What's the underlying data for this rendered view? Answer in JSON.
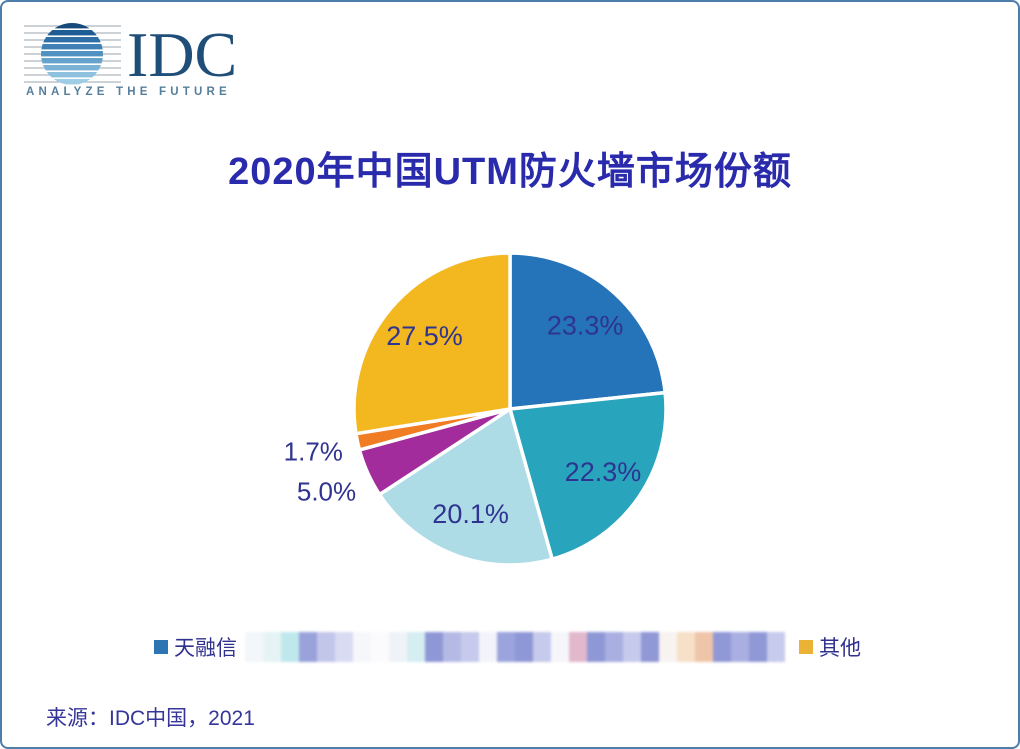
{
  "page": {
    "background": "#ffffff",
    "border_color": "#4C7EA9"
  },
  "logo": {
    "text": "IDC",
    "tagline": "ANALYZE THE FUTURE",
    "text_color": "#1F4E79",
    "tagline_color": "#557F9B",
    "globe_band_colors": [
      "#17497A",
      "#1D5C94",
      "#2D6FA6",
      "#3F81B4",
      "#5292C0",
      "#66A3CC",
      "#7AB3D6",
      "#8DC1DE",
      "#9FCDE5"
    ]
  },
  "title": "2020年中国UTM防火墙市场份额",
  "chart_data": {
    "type": "pie",
    "title": "2020年中国UTM防火墙市场份额",
    "start_angle_deg": 0,
    "direction": "clockwise",
    "label_color": "#2F3490",
    "legend_position": "bottom",
    "slices": [
      {
        "label": "天融信",
        "value": 23.3,
        "display": "23.3%",
        "color": "#2574B9",
        "redacted": false
      },
      {
        "label": "",
        "value": 22.3,
        "display": "22.3%",
        "color": "#28A5BC",
        "redacted": true
      },
      {
        "label": "",
        "value": 20.1,
        "display": "20.1%",
        "color": "#ADDCE7",
        "redacted": true
      },
      {
        "label": "",
        "value": 5.0,
        "display": "5.0%",
        "color": "#A32C9C",
        "redacted": true
      },
      {
        "label": "",
        "value": 1.7,
        "display": "1.7%",
        "color": "#F07D23",
        "redacted": true
      },
      {
        "label": "其他",
        "value": 27.5,
        "display": "27.5%",
        "color": "#F3B71F",
        "redacted": false
      }
    ]
  },
  "legend": {
    "first": {
      "label": "天融信",
      "color": "#2C74B2"
    },
    "last": {
      "label": "其他",
      "color": "#EBB335"
    },
    "redacted_mosaic": [
      "#F3F7FA",
      "#E6F3F5",
      "#BFE8ED",
      "#9AA2DB",
      "#C2C6EA",
      "#D9DBF3",
      "#F6F7FB",
      "#FBFBFD",
      "#EFF3F8",
      "#D5EEF2",
      "#8F98D6",
      "#B5BAE5",
      "#C6CAEC",
      "#F3F4FA",
      "#9CA4DD",
      "#8F98D6",
      "#C6CAEC",
      "#F6F6FA",
      "#E2B8CC",
      "#8F98D6",
      "#A9AFE1",
      "#C6CAEC",
      "#9098D6",
      "#F8F3F1",
      "#F7E0C8",
      "#EFC5A9",
      "#9098D6",
      "#A9AFE1",
      "#9098D6",
      "#C7CBEC"
    ]
  },
  "source": "来源：IDC中国，2021"
}
